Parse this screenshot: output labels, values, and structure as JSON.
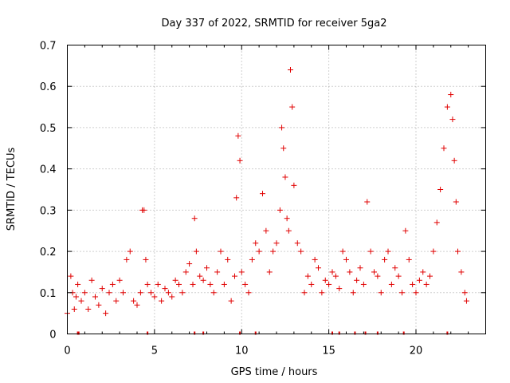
{
  "chart_data": {
    "type": "scatter",
    "title": "Day 337 of 2022, SRMTID for receiver 5ga2",
    "xlabel": "GPS time / hours",
    "ylabel": "SRMTID / TECUs",
    "xlim": [
      0,
      24
    ],
    "ylim": [
      0,
      0.7
    ],
    "x_ticks": [
      0,
      5,
      10,
      15,
      20
    ],
    "y_ticks": [
      0,
      0.1,
      0.2,
      0.3,
      0.4,
      0.5,
      0.6,
      0.7
    ],
    "grid": true,
    "marker": "+",
    "color": "#e00000",
    "series": [
      {
        "name": "5ga2",
        "x": [
          0.0,
          0.2,
          0.3,
          0.4,
          0.5,
          0.6,
          0.8,
          1.0,
          1.2,
          1.4,
          1.6,
          1.8,
          2.0,
          2.2,
          2.4,
          2.6,
          2.8,
          3.0,
          3.2,
          3.4,
          3.6,
          3.8,
          4.0,
          4.2,
          4.3,
          4.4,
          4.5,
          4.6,
          4.8,
          5.0,
          5.2,
          5.4,
          5.6,
          5.8,
          6.0,
          6.2,
          6.4,
          6.6,
          6.8,
          7.0,
          7.2,
          7.3,
          7.4,
          7.6,
          7.8,
          8.0,
          8.2,
          8.4,
          8.6,
          8.8,
          9.0,
          9.2,
          9.4,
          9.6,
          9.7,
          9.8,
          9.9,
          10.0,
          10.2,
          10.4,
          10.6,
          10.8,
          11.0,
          11.2,
          11.4,
          11.6,
          11.8,
          12.0,
          12.2,
          12.3,
          12.4,
          12.5,
          12.6,
          12.7,
          12.8,
          12.9,
          13.0,
          13.2,
          13.4,
          13.6,
          13.8,
          14.0,
          14.2,
          14.4,
          14.6,
          14.8,
          15.0,
          15.2,
          15.4,
          15.6,
          15.8,
          16.0,
          16.2,
          16.4,
          16.6,
          16.8,
          17.0,
          17.2,
          17.4,
          17.6,
          17.8,
          18.0,
          18.2,
          18.4,
          18.6,
          18.8,
          19.0,
          19.2,
          19.4,
          19.6,
          19.8,
          20.0,
          20.2,
          20.4,
          20.6,
          20.8,
          21.0,
          21.2,
          21.4,
          21.6,
          21.8,
          22.0,
          22.1,
          22.2,
          22.3,
          22.4,
          22.6,
          22.8,
          22.9
        ],
        "y": [
          0.05,
          0.14,
          0.1,
          0.06,
          0.09,
          0.12,
          0.08,
          0.1,
          0.06,
          0.13,
          0.09,
          0.07,
          0.11,
          0.05,
          0.1,
          0.12,
          0.08,
          0.13,
          0.1,
          0.18,
          0.2,
          0.08,
          0.07,
          0.1,
          0.3,
          0.3,
          0.18,
          0.12,
          0.1,
          0.09,
          0.12,
          0.08,
          0.11,
          0.1,
          0.09,
          0.13,
          0.12,
          0.1,
          0.15,
          0.17,
          0.12,
          0.28,
          0.2,
          0.14,
          0.13,
          0.16,
          0.12,
          0.1,
          0.15,
          0.2,
          0.12,
          0.18,
          0.08,
          0.14,
          0.33,
          0.48,
          0.42,
          0.15,
          0.12,
          0.1,
          0.18,
          0.22,
          0.2,
          0.34,
          0.25,
          0.15,
          0.2,
          0.22,
          0.3,
          0.5,
          0.45,
          0.38,
          0.28,
          0.25,
          0.64,
          0.55,
          0.36,
          0.22,
          0.2,
          0.1,
          0.14,
          0.12,
          0.18,
          0.16,
          0.1,
          0.13,
          0.12,
          0.15,
          0.14,
          0.11,
          0.2,
          0.18,
          0.15,
          0.1,
          0.13,
          0.16,
          0.12,
          0.32,
          0.2,
          0.15,
          0.14,
          0.1,
          0.18,
          0.2,
          0.12,
          0.16,
          0.14,
          0.1,
          0.25,
          0.18,
          0.12,
          0.1,
          0.13,
          0.15,
          0.12,
          0.14,
          0.2,
          0.27,
          0.35,
          0.45,
          0.55,
          0.58,
          0.52,
          0.42,
          0.32,
          0.2,
          0.15,
          0.1,
          0.08
        ]
      }
    ],
    "gap_markers_x": [
      0.6,
      0.65,
      4.6,
      7.3,
      7.8,
      9.9,
      10.8,
      15.2,
      15.6,
      16.5,
      17.1,
      17.8,
      19.3,
      21.8
    ]
  }
}
